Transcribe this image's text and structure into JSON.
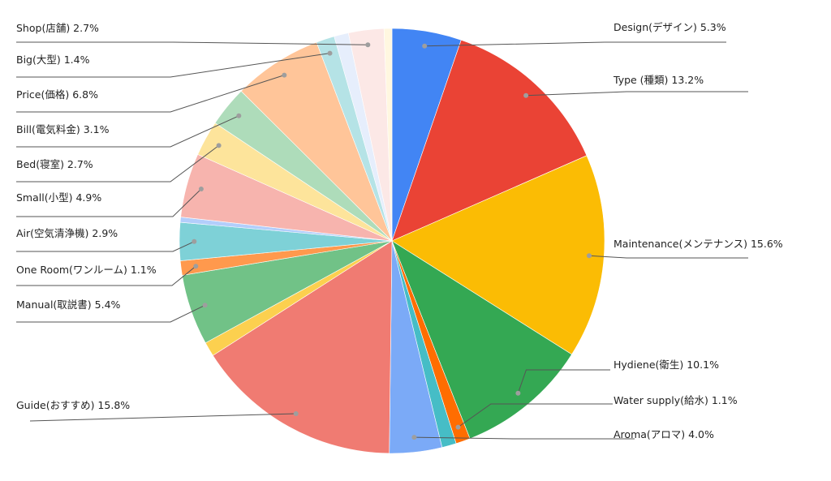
{
  "chart_data": {
    "type": "pie",
    "start_angle_deg": 0,
    "direction": "clockwise",
    "slices": [
      {
        "label": "Design(デザイン)",
        "value": 5.3,
        "text": "5.3%",
        "color": "#4285f4",
        "side": "right"
      },
      {
        "label": "Type (種類)",
        "value": 13.2,
        "text": "13.2%",
        "color": "#ea4335",
        "side": "right"
      },
      {
        "label": "Maintenance(メンテナンス)",
        "value": 15.6,
        "text": "15.6%",
        "color": "#fbbc04",
        "side": "right"
      },
      {
        "label": "Hydiene(衛生)",
        "value": 10.1,
        "text": "10.1%",
        "color": "#34a853",
        "side": "right"
      },
      {
        "label": "Water supply(給水)",
        "value": 1.1,
        "text": "1.1%",
        "color": "#ff6d01",
        "side": "right"
      },
      {
        "label": "",
        "value": 1.1,
        "text": "",
        "color": "#46bdc6",
        "side": "none"
      },
      {
        "label": "Aroma(アロマ)",
        "value": 4.0,
        "text": "4.0%",
        "color": "#7baaf7",
        "side": "right"
      },
      {
        "label": "Guide(おすすめ)",
        "value": 15.8,
        "text": "15.8%",
        "color": "#f07b72",
        "side": "left"
      },
      {
        "label": "",
        "value": 1.1,
        "text": "",
        "color": "#fcd04f",
        "side": "none"
      },
      {
        "label": "Manual(取説書)",
        "value": 5.4,
        "text": "5.4%",
        "color": "#71c287",
        "side": "left"
      },
      {
        "label": "One Room(ワンルーム)",
        "value": 1.1,
        "text": "1.1%",
        "color": "#ff994d",
        "side": "left"
      },
      {
        "label": "Air(空気清浄機)",
        "value": 2.9,
        "text": "2.9%",
        "color": "#7ed1d7",
        "side": "left"
      },
      {
        "label": "",
        "value": 0.4,
        "text": "",
        "color": "#b3cefb",
        "side": "none"
      },
      {
        "label": "Small(小型)",
        "value": 4.9,
        "text": "4.9%",
        "color": "#f7b4ae",
        "side": "left"
      },
      {
        "label": "Bed(寝室)",
        "value": 2.7,
        "text": "2.7%",
        "color": "#fde49b",
        "side": "left"
      },
      {
        "label": "Bill(電気料金)",
        "value": 3.1,
        "text": "3.1%",
        "color": "#aedcba",
        "side": "left"
      },
      {
        "label": "Price(価格)",
        "value": 6.8,
        "text": "6.8%",
        "color": "#ffc599",
        "side": "left"
      },
      {
        "label": "Big(大型)",
        "value": 1.4,
        "text": "1.4%",
        "color": "#b5e3e6",
        "side": "left"
      },
      {
        "label": "",
        "value": 1.1,
        "text": "",
        "color": "#e6eefc",
        "side": "none"
      },
      {
        "label": "Shop(店舗)",
        "value": 2.7,
        "text": "2.7%",
        "color": "#fce8e6",
        "side": "left"
      },
      {
        "label": "",
        "value": 0.6,
        "text": "",
        "color": "#fff7e0",
        "side": "none"
      }
    ]
  }
}
